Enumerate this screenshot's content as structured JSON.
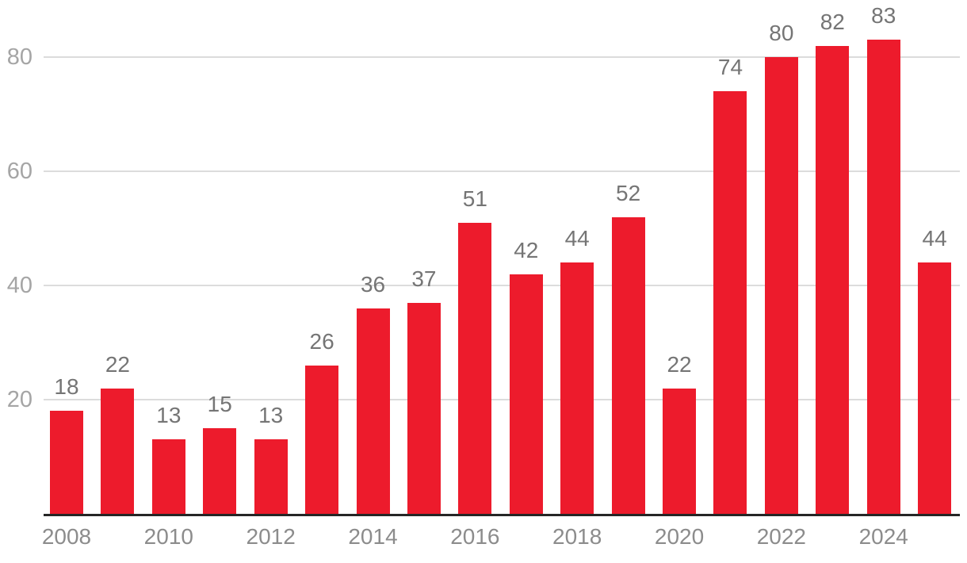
{
  "chart_data": {
    "type": "bar",
    "categories": [
      2008,
      2009,
      2010,
      2011,
      2012,
      2013,
      2014,
      2015,
      2016,
      2017,
      2018,
      2019,
      2020,
      2021,
      2022,
      2023,
      2024,
      2025
    ],
    "values": [
      18,
      22,
      13,
      15,
      13,
      26,
      36,
      37,
      51,
      42,
      44,
      52,
      22,
      74,
      80,
      82,
      83,
      44
    ],
    "value_labels": [
      "18",
      "22",
      "13",
      "15",
      "13",
      "26",
      "36",
      "37",
      "51",
      "42",
      "44",
      "52",
      "22",
      "74",
      "80",
      "82",
      "83",
      "44"
    ],
    "title": "",
    "xlabel": "",
    "ylabel": "",
    "ylim": [
      0,
      90
    ],
    "yticks": [
      20,
      40,
      60,
      80
    ],
    "ytick_labels": [
      "20",
      "40",
      "60",
      "80"
    ],
    "xtick_labels": [
      "2008",
      "2010",
      "2012",
      "2014",
      "2016",
      "2018",
      "2020",
      "2022",
      "2024"
    ],
    "grid": true,
    "legend": false,
    "colors": {
      "bar": "#ED1B2C",
      "value_label": "#757575",
      "xtick_label": "#8c8c8c",
      "ytick_label": "#a5a5a5",
      "gridline": "#dcdcdc",
      "axis_line": "#262626",
      "background": "#ffffff"
    }
  }
}
